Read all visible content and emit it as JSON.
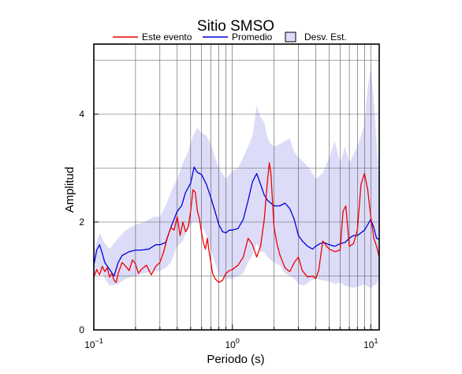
{
  "chart_data": {
    "type": "line",
    "title": "Sitio SMSO",
    "xlabel": "Periodo (s)",
    "ylabel": "Amplitud",
    "xscale": "log",
    "xlim": [
      0.1,
      11.5
    ],
    "ylim": [
      0,
      5.3
    ],
    "grid": true,
    "legend_position": "top",
    "x_tick_labels": [
      {
        "base": "10",
        "exp": "−1",
        "value": 0.1
      },
      {
        "base": "10",
        "exp": "0",
        "value": 1
      },
      {
        "base": "10",
        "exp": "1",
        "value": 10
      }
    ],
    "y_ticks": [
      0,
      2,
      4
    ],
    "legend": [
      {
        "key": "este",
        "label": "Este evento",
        "kind": "line",
        "color": "#ee0000"
      },
      {
        "key": "prom",
        "label": "Promedio",
        "kind": "line",
        "color": "#0000dd"
      },
      {
        "key": "band",
        "label": "Desv. Est.",
        "kind": "patch",
        "color": "#dcdcf8"
      }
    ],
    "series": [
      {
        "key": "este",
        "name": "Este evento",
        "color": "#ee0000",
        "points": [
          [
            0.1,
            0.98
          ],
          [
            0.105,
            1.12
          ],
          [
            0.11,
            1.02
          ],
          [
            0.115,
            1.18
          ],
          [
            0.12,
            1.08
          ],
          [
            0.125,
            1.15
          ],
          [
            0.13,
            0.98
          ],
          [
            0.135,
            1.05
          ],
          [
            0.14,
            0.92
          ],
          [
            0.145,
            0.88
          ],
          [
            0.15,
            1.05
          ],
          [
            0.16,
            1.25
          ],
          [
            0.17,
            1.18
          ],
          [
            0.18,
            1.1
          ],
          [
            0.19,
            1.3
          ],
          [
            0.2,
            1.22
          ],
          [
            0.21,
            1.05
          ],
          [
            0.22,
            1.12
          ],
          [
            0.24,
            1.2
          ],
          [
            0.26,
            1.02
          ],
          [
            0.28,
            1.18
          ],
          [
            0.3,
            1.25
          ],
          [
            0.32,
            1.45
          ],
          [
            0.34,
            1.72
          ],
          [
            0.36,
            1.9
          ],
          [
            0.38,
            1.85
          ],
          [
            0.4,
            2.1
          ],
          [
            0.42,
            1.75
          ],
          [
            0.44,
            2.0
          ],
          [
            0.46,
            1.82
          ],
          [
            0.48,
            1.9
          ],
          [
            0.5,
            2.2
          ],
          [
            0.52,
            2.6
          ],
          [
            0.54,
            2.55
          ],
          [
            0.56,
            2.2
          ],
          [
            0.58,
            2.05
          ],
          [
            0.6,
            1.8
          ],
          [
            0.62,
            1.6
          ],
          [
            0.64,
            1.5
          ],
          [
            0.66,
            1.7
          ],
          [
            0.68,
            1.45
          ],
          [
            0.7,
            1.25
          ],
          [
            0.72,
            1.05
          ],
          [
            0.75,
            0.95
          ],
          [
            0.8,
            0.88
          ],
          [
            0.85,
            0.92
          ],
          [
            0.9,
            1.05
          ],
          [
            0.95,
            1.1
          ],
          [
            1.0,
            1.12
          ],
          [
            1.1,
            1.2
          ],
          [
            1.2,
            1.35
          ],
          [
            1.3,
            1.7
          ],
          [
            1.4,
            1.58
          ],
          [
            1.5,
            1.35
          ],
          [
            1.6,
            1.55
          ],
          [
            1.7,
            2.05
          ],
          [
            1.8,
            2.8
          ],
          [
            1.85,
            3.1
          ],
          [
            1.9,
            2.9
          ],
          [
            2.0,
            1.9
          ],
          [
            2.1,
            1.6
          ],
          [
            2.2,
            1.4
          ],
          [
            2.4,
            1.15
          ],
          [
            2.6,
            1.08
          ],
          [
            2.8,
            1.25
          ],
          [
            3.0,
            1.35
          ],
          [
            3.2,
            1.1
          ],
          [
            3.5,
            0.98
          ],
          [
            3.8,
            1.0
          ],
          [
            4.0,
            0.95
          ],
          [
            4.2,
            1.1
          ],
          [
            4.5,
            1.65
          ],
          [
            4.8,
            1.55
          ],
          [
            5.0,
            1.5
          ],
          [
            5.5,
            1.45
          ],
          [
            6.0,
            1.48
          ],
          [
            6.3,
            2.2
          ],
          [
            6.6,
            2.3
          ],
          [
            7.0,
            1.55
          ],
          [
            7.5,
            1.6
          ],
          [
            8.0,
            1.85
          ],
          [
            8.5,
            2.7
          ],
          [
            9.0,
            2.9
          ],
          [
            9.5,
            2.6
          ],
          [
            10.0,
            2.1
          ],
          [
            10.5,
            1.7
          ],
          [
            11.0,
            1.55
          ],
          [
            11.5,
            1.35
          ]
        ]
      },
      {
        "key": "prom",
        "name": "Promedio",
        "color": "#0000dd",
        "points": [
          [
            0.1,
            1.2
          ],
          [
            0.105,
            1.48
          ],
          [
            0.11,
            1.58
          ],
          [
            0.115,
            1.42
          ],
          [
            0.12,
            1.25
          ],
          [
            0.13,
            1.12
          ],
          [
            0.14,
            1.0
          ],
          [
            0.15,
            1.25
          ],
          [
            0.16,
            1.38
          ],
          [
            0.18,
            1.45
          ],
          [
            0.2,
            1.48
          ],
          [
            0.22,
            1.48
          ],
          [
            0.25,
            1.5
          ],
          [
            0.28,
            1.58
          ],
          [
            0.3,
            1.58
          ],
          [
            0.33,
            1.62
          ],
          [
            0.36,
            1.9
          ],
          [
            0.4,
            2.2
          ],
          [
            0.43,
            2.3
          ],
          [
            0.46,
            2.55
          ],
          [
            0.5,
            2.72
          ],
          [
            0.53,
            3.02
          ],
          [
            0.56,
            2.92
          ],
          [
            0.6,
            2.88
          ],
          [
            0.65,
            2.7
          ],
          [
            0.7,
            2.45
          ],
          [
            0.75,
            2.2
          ],
          [
            0.8,
            1.95
          ],
          [
            0.85,
            1.82
          ],
          [
            0.9,
            1.8
          ],
          [
            0.95,
            1.85
          ],
          [
            1.0,
            1.85
          ],
          [
            1.1,
            1.88
          ],
          [
            1.2,
            2.05
          ],
          [
            1.3,
            2.4
          ],
          [
            1.4,
            2.75
          ],
          [
            1.5,
            2.9
          ],
          [
            1.6,
            2.7
          ],
          [
            1.7,
            2.5
          ],
          [
            1.8,
            2.4
          ],
          [
            1.9,
            2.35
          ],
          [
            2.0,
            2.3
          ],
          [
            2.2,
            2.3
          ],
          [
            2.4,
            2.35
          ],
          [
            2.6,
            2.25
          ],
          [
            2.8,
            2.05
          ],
          [
            3.0,
            1.75
          ],
          [
            3.2,
            1.65
          ],
          [
            3.5,
            1.55
          ],
          [
            3.8,
            1.5
          ],
          [
            4.0,
            1.55
          ],
          [
            4.3,
            1.6
          ],
          [
            4.6,
            1.62
          ],
          [
            5.0,
            1.58
          ],
          [
            5.5,
            1.55
          ],
          [
            6.0,
            1.6
          ],
          [
            6.5,
            1.62
          ],
          [
            7.0,
            1.7
          ],
          [
            7.5,
            1.75
          ],
          [
            8.0,
            1.75
          ],
          [
            8.5,
            1.8
          ],
          [
            9.0,
            1.85
          ],
          [
            9.5,
            1.95
          ],
          [
            10.0,
            2.05
          ],
          [
            10.5,
            1.9
          ],
          [
            11.0,
            1.7
          ],
          [
            11.5,
            1.68
          ]
        ]
      }
    ],
    "band": {
      "key": "band",
      "name": "Desv. Est.",
      "color": "#dcdcf8",
      "upper": [
        [
          0.1,
          1.45
        ],
        [
          0.11,
          1.8
        ],
        [
          0.12,
          1.6
        ],
        [
          0.13,
          1.5
        ],
        [
          0.15,
          1.7
        ],
        [
          0.17,
          1.85
        ],
        [
          0.2,
          1.95
        ],
        [
          0.23,
          2.0
        ],
        [
          0.27,
          2.1
        ],
        [
          0.3,
          2.1
        ],
        [
          0.33,
          2.3
        ],
        [
          0.36,
          2.55
        ],
        [
          0.4,
          2.8
        ],
        [
          0.44,
          3.1
        ],
        [
          0.48,
          3.3
        ],
        [
          0.52,
          3.6
        ],
        [
          0.56,
          3.75
        ],
        [
          0.6,
          3.65
        ],
        [
          0.65,
          3.6
        ],
        [
          0.7,
          3.45
        ],
        [
          0.75,
          3.2
        ],
        [
          0.8,
          3.0
        ],
        [
          0.9,
          2.8
        ],
        [
          1.0,
          2.95
        ],
        [
          1.1,
          3.0
        ],
        [
          1.2,
          3.2
        ],
        [
          1.3,
          3.4
        ],
        [
          1.4,
          3.6
        ],
        [
          1.5,
          4.15
        ],
        [
          1.6,
          3.95
        ],
        [
          1.7,
          3.85
        ],
        [
          1.8,
          3.55
        ],
        [
          1.9,
          3.45
        ],
        [
          2.0,
          3.4
        ],
        [
          2.2,
          3.45
        ],
        [
          2.4,
          3.5
        ],
        [
          2.6,
          3.55
        ],
        [
          2.8,
          3.3
        ],
        [
          3.0,
          3.2
        ],
        [
          3.3,
          3.1
        ],
        [
          3.6,
          3.0
        ],
        [
          4.0,
          2.8
        ],
        [
          4.5,
          2.9
        ],
        [
          5.0,
          3.2
        ],
        [
          5.5,
          3.5
        ],
        [
          6.0,
          3.1
        ],
        [
          6.5,
          3.4
        ],
        [
          7.0,
          3.1
        ],
        [
          7.5,
          3.25
        ],
        [
          8.0,
          3.4
        ],
        [
          8.5,
          3.6
        ],
        [
          9.0,
          3.8
        ],
        [
          9.5,
          4.5
        ],
        [
          10.0,
          4.85
        ],
        [
          10.5,
          4.3
        ],
        [
          11.0,
          3.5
        ],
        [
          11.5,
          2.75
        ]
      ],
      "lower": [
        [
          0.1,
          1.0
        ],
        [
          0.11,
          1.1
        ],
        [
          0.12,
          0.95
        ],
        [
          0.13,
          0.82
        ],
        [
          0.15,
          0.85
        ],
        [
          0.17,
          0.95
        ],
        [
          0.2,
          1.0
        ],
        [
          0.23,
          1.05
        ],
        [
          0.27,
          1.08
        ],
        [
          0.3,
          1.1
        ],
        [
          0.33,
          1.15
        ],
        [
          0.36,
          1.25
        ],
        [
          0.4,
          1.55
        ],
        [
          0.44,
          1.65
        ],
        [
          0.48,
          1.9
        ],
        [
          0.52,
          2.0
        ],
        [
          0.56,
          2.0
        ],
        [
          0.6,
          1.95
        ],
        [
          0.65,
          1.75
        ],
        [
          0.7,
          1.5
        ],
        [
          0.75,
          1.25
        ],
        [
          0.8,
          1.0
        ],
        [
          0.9,
          0.95
        ],
        [
          1.0,
          0.95
        ],
        [
          1.1,
          1.0
        ],
        [
          1.2,
          1.05
        ],
        [
          1.3,
          1.25
        ],
        [
          1.4,
          1.4
        ],
        [
          1.5,
          1.6
        ],
        [
          1.6,
          1.45
        ],
        [
          1.7,
          1.45
        ],
        [
          1.8,
          1.35
        ],
        [
          1.9,
          1.3
        ],
        [
          2.0,
          1.25
        ],
        [
          2.2,
          1.2
        ],
        [
          2.4,
          1.05
        ],
        [
          2.6,
          1.0
        ],
        [
          2.8,
          0.95
        ],
        [
          3.0,
          0.85
        ],
        [
          3.3,
          0.82
        ],
        [
          3.6,
          0.9
        ],
        [
          4.0,
          0.95
        ],
        [
          4.5,
          0.92
        ],
        [
          5.0,
          0.9
        ],
        [
          5.5,
          0.85
        ],
        [
          6.0,
          0.88
        ],
        [
          6.5,
          0.82
        ],
        [
          7.0,
          0.8
        ],
        [
          7.5,
          0.78
        ],
        [
          8.0,
          0.8
        ],
        [
          8.5,
          0.82
        ],
        [
          9.0,
          0.85
        ],
        [
          9.5,
          0.8
        ],
        [
          10.0,
          0.78
        ],
        [
          10.5,
          0.82
        ],
        [
          11.0,
          0.85
        ],
        [
          11.5,
          0.95
        ]
      ]
    }
  }
}
